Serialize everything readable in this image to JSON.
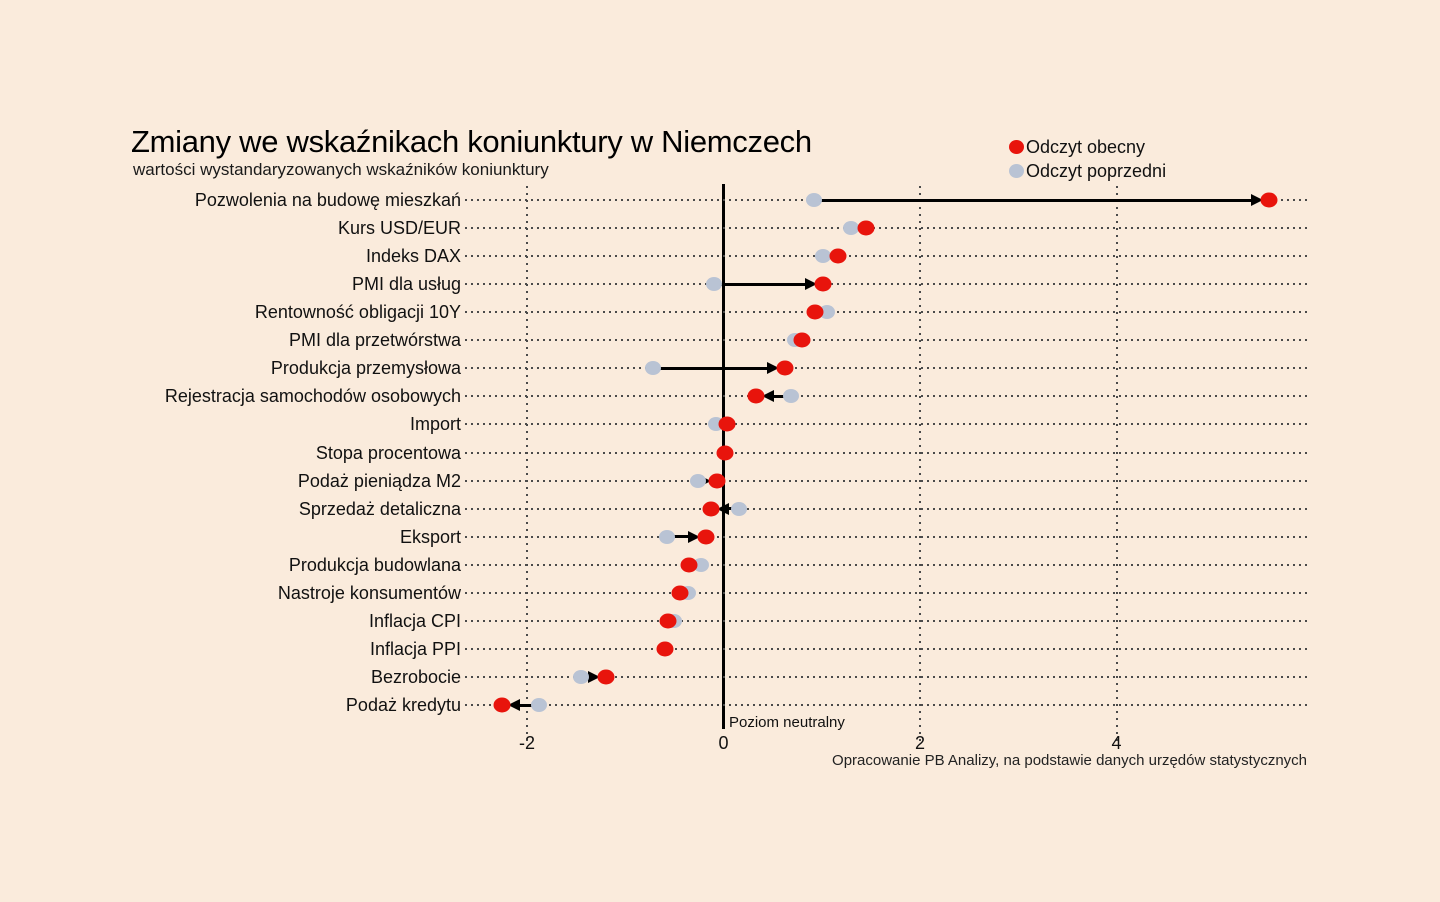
{
  "title": "Zmiany we wskaźnikach koniunktury w Niemczech",
  "subtitle": "wartości wystandaryzowanych wskaźników koniunktury",
  "legend": {
    "current": "Odczyt obecny",
    "previous": "Odczyt poprzedni"
  },
  "annotations": {
    "neutral": "Poziom neutralny"
  },
  "source": "Opracowanie PB Analizy, na podstawie danych urzędów statystycznych",
  "colors": {
    "current": "#e8140c",
    "previous": "#b9c3d4",
    "background": "#faebdc",
    "axis": "#000000"
  },
  "chart_data": {
    "type": "scatter",
    "subtype": "dumbbell-dot-plot",
    "orientation": "horizontal",
    "title": "Zmiany we wskaźnikach koniunktury w Niemczech",
    "subtitle": "wartości wystandaryzowanych wskaźników koniunktury",
    "xlabel": "",
    "ylabel": "",
    "xlim": [
      -2.65,
      5.95
    ],
    "xticks": [
      -2,
      0,
      2,
      4
    ],
    "neutral_line": 0,
    "grid": "dotted",
    "legend_position": "top-right",
    "categories": [
      "Pozwolenia na budowę mieszkań",
      "Kurs USD/EUR",
      "Indeks DAX",
      "PMI dla usług",
      "Rentowność obligacji 10Y",
      "PMI dla przetwórstwa",
      "Produkcja przemysłowa",
      "Rejestracja samochodów osobowych",
      "Import",
      "Stopa procentowa",
      "Podaż pieniądza M2",
      "Sprzedaż detaliczna",
      "Eksport",
      "Produkcja budowlana",
      "Nastroje konsumentów",
      "Inflacja CPI",
      "Inflacja PPI",
      "Bezrobocie",
      "Podaż kredytu"
    ],
    "series": [
      {
        "name": "Odczyt obecny",
        "color": "#e8140c",
        "values": [
          5.55,
          1.45,
          1.17,
          1.01,
          0.93,
          0.8,
          0.63,
          0.33,
          0.04,
          0.02,
          -0.07,
          -0.13,
          -0.18,
          -0.35,
          -0.44,
          -0.56,
          -0.6,
          -1.2,
          -2.25
        ]
      },
      {
        "name": "Odczyt poprzedni",
        "color": "#b9c3d4",
        "values": [
          0.92,
          1.3,
          1.01,
          -0.1,
          1.05,
          0.73,
          -0.72,
          0.69,
          -0.08,
          0.02,
          -0.26,
          0.16,
          -0.58,
          -0.23,
          -0.36,
          -0.5,
          -0.6,
          -1.45,
          -1.88
        ]
      }
    ]
  }
}
